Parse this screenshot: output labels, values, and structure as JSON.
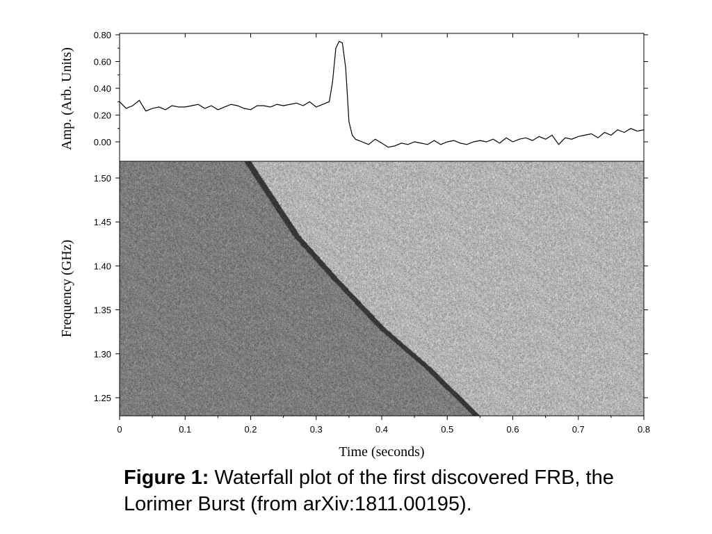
{
  "chart_data": [
    {
      "type": "line",
      "ylabel": "Amp. (Arb. Units)",
      "ylim": [
        -0.07,
        0.8
      ],
      "xlim": [
        0,
        0.8
      ],
      "yticks": [
        "0.00",
        "0.20",
        "0.40",
        "0.60",
        "0.80"
      ],
      "ytick_values": [
        0.0,
        0.2,
        0.4,
        0.6,
        0.8
      ],
      "series": [
        {
          "x": [
            0.0,
            0.01,
            0.02,
            0.03,
            0.04,
            0.05,
            0.06,
            0.07,
            0.08,
            0.09,
            0.1,
            0.11,
            0.12,
            0.13,
            0.14,
            0.15,
            0.16,
            0.17,
            0.18,
            0.19,
            0.2,
            0.21,
            0.22,
            0.23,
            0.24,
            0.25,
            0.26,
            0.27,
            0.28,
            0.29,
            0.3,
            0.31,
            0.32,
            0.325,
            0.33,
            0.335,
            0.34,
            0.345,
            0.35,
            0.355,
            0.36,
            0.37,
            0.38,
            0.39,
            0.4,
            0.41,
            0.42,
            0.43,
            0.44,
            0.45,
            0.46,
            0.47,
            0.48,
            0.49,
            0.5,
            0.51,
            0.52,
            0.53,
            0.54,
            0.55,
            0.56,
            0.57,
            0.58,
            0.59,
            0.6,
            0.61,
            0.62,
            0.63,
            0.64,
            0.65,
            0.66,
            0.67,
            0.68,
            0.69,
            0.7,
            0.71,
            0.72,
            0.73,
            0.74,
            0.75,
            0.76,
            0.77,
            0.78,
            0.79,
            0.8
          ],
          "y": [
            0.3,
            0.25,
            0.27,
            0.31,
            0.23,
            0.25,
            0.26,
            0.24,
            0.27,
            0.26,
            0.26,
            0.27,
            0.28,
            0.25,
            0.27,
            0.24,
            0.26,
            0.28,
            0.27,
            0.25,
            0.24,
            0.27,
            0.27,
            0.26,
            0.28,
            0.27,
            0.28,
            0.29,
            0.27,
            0.3,
            0.26,
            0.28,
            0.3,
            0.45,
            0.7,
            0.75,
            0.74,
            0.55,
            0.15,
            0.05,
            0.02,
            0.0,
            -0.02,
            0.02,
            -0.01,
            -0.04,
            -0.03,
            -0.01,
            -0.02,
            0.0,
            -0.01,
            -0.02,
            0.01,
            -0.02,
            0.0,
            0.01,
            -0.01,
            -0.02,
            0.0,
            0.01,
            0.0,
            0.02,
            -0.01,
            0.03,
            0.0,
            0.02,
            0.03,
            0.01,
            0.04,
            0.02,
            0.05,
            -0.02,
            0.03,
            0.02,
            0.04,
            0.05,
            0.06,
            0.03,
            0.07,
            0.05,
            0.09,
            0.07,
            0.1,
            0.08,
            0.09
          ]
        }
      ]
    },
    {
      "type": "heatmap",
      "xlabel": "Time (seconds)",
      "ylabel": "Frequency (GHz)",
      "xlim": [
        0,
        0.8
      ],
      "ylim": [
        1.23,
        1.52
      ],
      "xticks": [
        "0",
        "0.1",
        "0.2",
        "0.3",
        "0.4",
        "0.5",
        "0.6",
        "0.7",
        "0.8"
      ],
      "xtick_values": [
        0,
        0.1,
        0.2,
        0.3,
        0.4,
        0.5,
        0.6,
        0.7,
        0.8
      ],
      "yticks": [
        "1.25",
        "1.30",
        "1.35",
        "1.40",
        "1.45",
        "1.50"
      ],
      "ytick_values": [
        1.25,
        1.3,
        1.35,
        1.4,
        1.45,
        1.5
      ],
      "dispersion_track": {
        "x": [
          0.195,
          0.27,
          0.33,
          0.4,
          0.47,
          0.545
        ],
        "y": [
          1.52,
          1.435,
          1.385,
          1.33,
          1.285,
          1.23
        ]
      },
      "colormap": "grayscale"
    }
  ],
  "caption": {
    "label": "Figure 1:",
    "text": " Waterfall plot of the first discovered FRB, the Lorimer Burst (from arXiv:1811.00195)."
  }
}
